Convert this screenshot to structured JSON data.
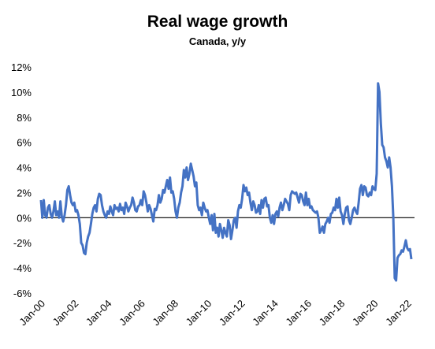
{
  "chart_data": {
    "type": "line",
    "title": "Real wage growth",
    "subtitle": "Canada, y/y",
    "categories": [
      "Jan-00",
      null,
      null,
      null,
      null,
      null,
      null,
      null,
      null,
      null,
      null,
      null,
      null,
      null,
      null,
      null,
      null,
      null,
      null,
      null,
      null,
      null,
      null,
      null,
      "Jan-02",
      null,
      null,
      null,
      null,
      null,
      null,
      null,
      null,
      null,
      null,
      null,
      null,
      null,
      null,
      null,
      null,
      null,
      null,
      null,
      null,
      null,
      null,
      null,
      "Jan-04",
      null,
      null,
      null,
      null,
      null,
      null,
      null,
      null,
      null,
      null,
      null,
      null,
      null,
      null,
      null,
      null,
      null,
      null,
      null,
      null,
      null,
      null,
      null,
      "Jan-06",
      null,
      null,
      null,
      null,
      null,
      null,
      null,
      null,
      null,
      null,
      null,
      null,
      null,
      null,
      null,
      null,
      null,
      null,
      null,
      null,
      null,
      null,
      null,
      "Jan-08",
      null,
      null,
      null,
      null,
      null,
      null,
      null,
      null,
      null,
      null,
      null,
      null,
      null,
      null,
      null,
      null,
      null,
      null,
      null,
      null,
      null,
      null,
      null,
      "Jan-10",
      null,
      null,
      null,
      null,
      null,
      null,
      null,
      null,
      null,
      null,
      null,
      null,
      null,
      null,
      null,
      null,
      null,
      null,
      null,
      null,
      null,
      null,
      null,
      "Jan-12",
      null,
      null,
      null,
      null,
      null,
      null,
      null,
      null,
      null,
      null,
      null,
      null,
      null,
      null,
      null,
      null,
      null,
      null,
      null,
      null,
      null,
      null,
      null,
      "Jan-14",
      null,
      null,
      null,
      null,
      null,
      null,
      null,
      null,
      null,
      null,
      null,
      null,
      null,
      null,
      null,
      null,
      null,
      null,
      null,
      null,
      null,
      null,
      null,
      "Jan-16",
      null,
      null,
      null,
      null,
      null,
      null,
      null,
      null,
      null,
      null,
      null,
      null,
      null,
      null,
      null,
      null,
      null,
      null,
      null,
      null,
      null,
      null,
      null,
      "Jan-18",
      null,
      null,
      null,
      null,
      null,
      null,
      null,
      null,
      null,
      null,
      null,
      null,
      null,
      null,
      null,
      null,
      null,
      null,
      null,
      null,
      null,
      null,
      null,
      "Jan-20",
      null,
      null,
      null,
      null,
      null,
      null,
      null,
      null,
      null,
      null,
      null,
      null,
      null,
      null,
      null,
      null,
      null,
      null,
      null,
      null,
      null,
      null,
      null,
      "Jan-22",
      null,
      null,
      null
    ],
    "values": [
      1.4,
      0,
      1.4,
      0.2,
      0,
      0.8,
      1.0,
      0.3,
      0,
      0.5,
      1.3,
      0.2,
      0.5,
      0,
      1.3,
      0.1,
      -0.3,
      0.2,
      1.0,
      2.2,
      2.5,
      1.8,
      1.2,
      1.0,
      1.2,
      0.5,
      0.6,
      0.2,
      -0.5,
      -2.0,
      -2.2,
      -2.8,
      -2.9,
      -2.0,
      -1.5,
      -1.2,
      -0.5,
      0.3,
      0.8,
      1.0,
      0.5,
      1.5,
      1.9,
      1.8,
      1.0,
      0.5,
      0.2,
      0.0,
      0.5,
      0.3,
      0.9,
      0.5,
      0.2,
      1.0,
      0.7,
      0.8,
      0.5,
      1.1,
      0.6,
      0.8,
      0.3,
      1.2,
      0.9,
      0.5,
      0.8,
      1.0,
      1.6,
      1.2,
      0.6,
      0.5,
      0.9,
      1.0,
      1.4,
      1.0,
      2.1,
      1.8,
      1.2,
      0.5,
      1.0,
      0.7,
      0.2,
      -0.3,
      0.7,
      0.6,
      1.0,
      1.8,
      1.2,
      1.5,
      2.2,
      2.0,
      2.5,
      3.0,
      2.3,
      3.2,
      2.0,
      2.1,
      1.5,
      0.5,
      0.0,
      0.8,
      1.2,
      2.0,
      2.5,
      3.8,
      3.2,
      4.0,
      3.0,
      3.5,
      4.3,
      3.8,
      3.3,
      2.5,
      2.8,
      1.0,
      0.6,
      0.8,
      0.2,
      1.2,
      0.8,
      0.5,
      0.6,
      0.0,
      -0.5,
      0.2,
      -1.0,
      0.3,
      -1.2,
      -0.8,
      -1.5,
      -0.5,
      -1.0,
      -1.6,
      -0.8,
      -1.2,
      -1.5,
      -0.2,
      -0.6,
      -1.7,
      -1.0,
      -0.2,
      0.0,
      -0.8,
      0.5,
      1.0,
      0.8,
      1.5,
      2.6,
      2.1,
      2.4,
      1.8,
      2.0,
      1.2,
      0.6,
      1.3,
      1.0,
      0.4,
      0.5,
      1.0,
      0.3,
      1.4,
      0.8,
      1.5,
      1.6,
      0.9,
      1.0,
      0.0,
      -0.4,
      0.2,
      -0.5,
      0.3,
      0.5,
      0.1,
      0.8,
      1.2,
      0.6,
      1.0,
      1.5,
      1.3,
      1.1,
      0.6,
      1.8,
      2.1,
      2.0,
      1.9,
      2.0,
      1.6,
      1.2,
      1.9,
      1.8,
      1.3,
      1.0,
      2.0,
      1.0,
      1.5,
      0.8,
      0.9,
      0.6,
      0.5,
      0.4,
      0.5,
      0.0,
      -1.2,
      -1.0,
      -0.7,
      -1.2,
      -0.5,
      -0.3,
      0.0,
      -0.4,
      0.3,
      0.4,
      0.8,
      0.6,
      1.5,
      0.8,
      1.6,
      0.5,
      0.2,
      -0.5,
      0.3,
      0.8,
      0.9,
      -0.2,
      -0.5,
      0.0,
      0.6,
      0.8,
      0.5,
      0.3,
      1.2,
      2.3,
      2.6,
      1.8,
      2.5,
      2.4,
      1.8,
      1.7,
      2.0,
      1.8,
      2.5,
      2.3,
      2.2,
      3.5,
      10.7,
      10.0,
      7.5,
      5.8,
      5.6,
      4.8,
      4.5,
      4.0,
      4.8,
      4.0,
      2.5,
      0.0,
      -4.8,
      -5.0,
      -3.2,
      -3.0,
      -2.9,
      -2.6,
      -2.7,
      -2.3,
      -1.8,
      -2.4,
      -2.6,
      -2.5,
      -3.3
    ],
    "color": "#4472c4",
    "ylim": [
      -6,
      12
    ],
    "yticks": [
      {
        "value": -6,
        "label": "-6%"
      },
      {
        "value": -4,
        "label": "-4%"
      },
      {
        "value": -2,
        "label": "-2%"
      },
      {
        "value": 0,
        "label": "0%"
      },
      {
        "value": 2,
        "label": "2%"
      },
      {
        "value": 4,
        "label": "4%"
      },
      {
        "value": 6,
        "label": "6%"
      },
      {
        "value": 8,
        "label": "8%"
      },
      {
        "value": 10,
        "label": "10%"
      },
      {
        "value": 12,
        "label": "12%"
      }
    ]
  }
}
